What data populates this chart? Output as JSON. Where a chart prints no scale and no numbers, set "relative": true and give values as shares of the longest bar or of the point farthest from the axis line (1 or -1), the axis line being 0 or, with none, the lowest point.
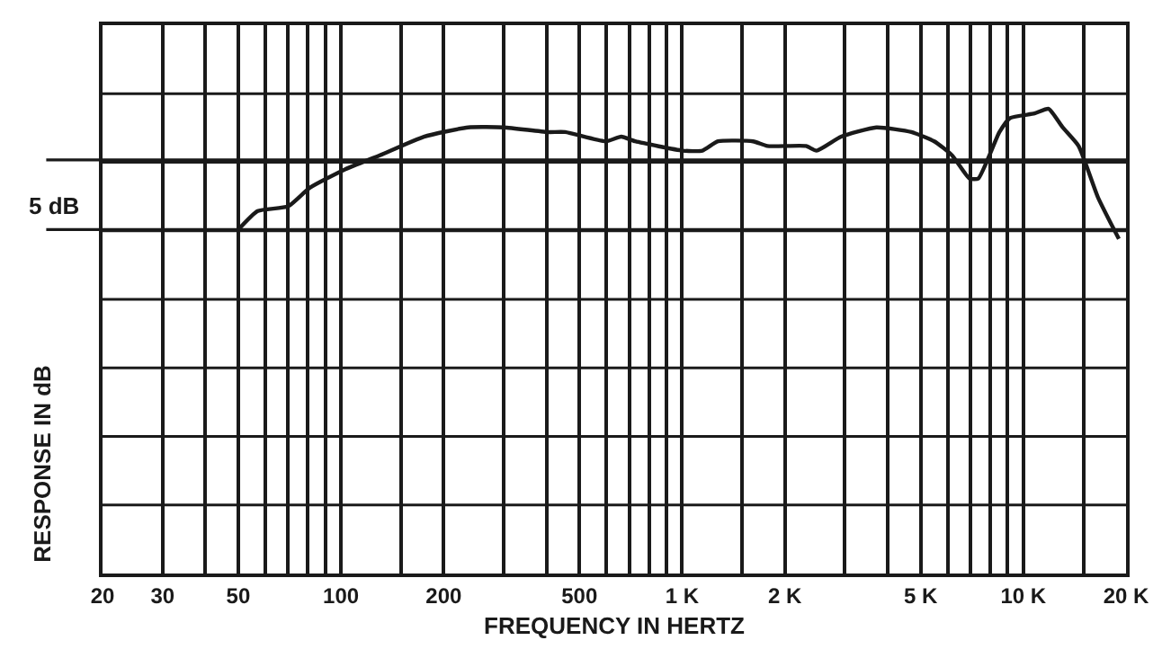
{
  "chart_data": {
    "type": "line",
    "relative": true,
    "xlabel": "FREQUENCY IN HERTZ",
    "ylabel": "RESPONSE IN dB",
    "log": "x",
    "xlim": [
      20,
      20000
    ],
    "xticks": [
      20,
      30,
      {
        "value": 40,
        "label": null
      },
      50,
      {
        "value": 60,
        "label": null
      },
      {
        "value": 70,
        "label": null
      },
      {
        "value": 80,
        "label": null
      },
      {
        "value": 90,
        "label": null
      },
      100,
      {
        "value": 150,
        "label": null
      },
      200,
      {
        "value": 300,
        "label": null
      },
      {
        "value": 400,
        "label": null
      },
      500,
      {
        "value": 600,
        "label": null
      },
      {
        "value": 700,
        "label": null
      },
      {
        "value": 800,
        "label": null
      },
      {
        "value": 900,
        "label": null
      },
      {
        "value": 1000,
        "label": "1 K"
      },
      {
        "value": 1500,
        "label": null
      },
      {
        "value": 2000,
        "label": "2 K"
      },
      {
        "value": 3000,
        "label": null
      },
      {
        "value": 4000,
        "label": null
      },
      {
        "value": 5000,
        "label": "5 K"
      },
      {
        "value": 6000,
        "label": null
      },
      {
        "value": 7000,
        "label": null
      },
      {
        "value": 8000,
        "label": null
      },
      {
        "value": 9000,
        "label": null
      },
      {
        "value": 10000,
        "label": "10 K"
      },
      {
        "value": 15000,
        "label": null
      },
      {
        "value": 20000,
        "label": "20 K"
      }
    ],
    "tick_labels": "x",
    "grid": true,
    "marker": "none",
    "line_style": "solid",
    "ref_lines": [
      {
        "axis": "y",
        "value": 0.89,
        "color": "#1a1a1a"
      },
      {
        "axis": "y",
        "value": 0.74,
        "label": "5 dB",
        "color": "#1a1a1a"
      }
    ],
    "series": [
      {
        "color": "#1a1a1a",
        "x": [
          50,
          57,
          70,
          81,
          103,
          130,
          175,
          236,
          300,
          403,
          454,
          596,
          663,
          729,
          1004,
          1146,
          1274,
          1614,
          1776,
          2306,
          2477,
          2924,
          3707,
          4700,
          5483,
          6180,
          6952,
          7380,
          8512,
          9140,
          10790,
          11860,
          13040,
          14520,
          16540,
          19060
        ],
        "values": [
          0.74,
          0.78,
          0.79,
          0.83,
          0.87,
          0.9,
          0.94,
          0.96,
          0.96,
          0.95,
          0.95,
          0.93,
          0.94,
          0.93,
          0.91,
          0.91,
          0.93,
          0.93,
          0.92,
          0.92,
          0.91,
          0.94,
          0.96,
          0.95,
          0.93,
          0.9,
          0.85,
          0.85,
          0.95,
          0.98,
          0.99,
          1.0,
          0.96,
          0.92,
          0.81,
          0.72
        ]
      }
    ]
  }
}
